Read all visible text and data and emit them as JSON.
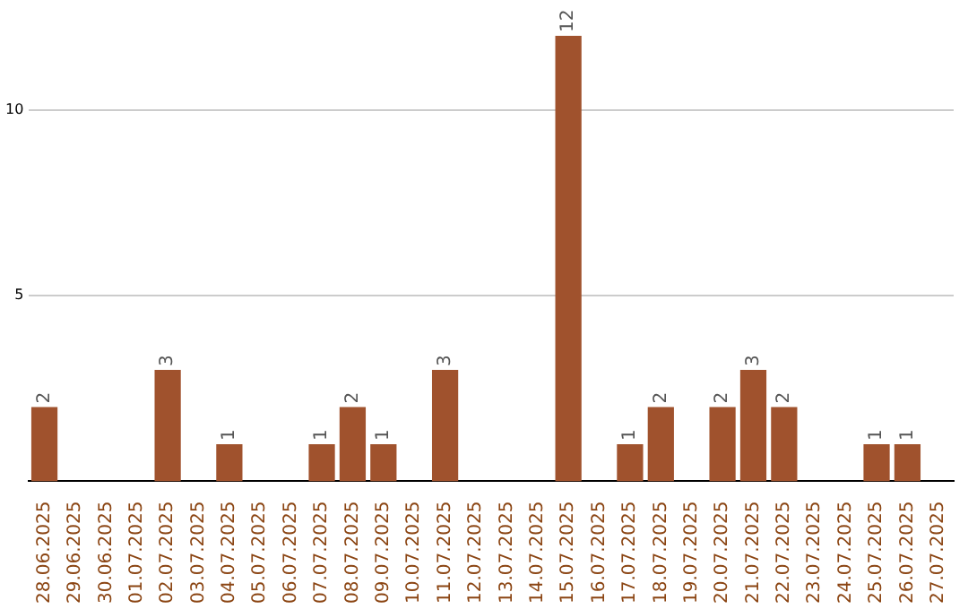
{
  "chart_data": {
    "type": "bar",
    "categories": [
      "28.06.2025",
      "29.06.2025",
      "30.06.2025",
      "01.07.2025",
      "02.07.2025",
      "03.07.2025",
      "04.07.2025",
      "05.07.2025",
      "06.07.2025",
      "07.07.2025",
      "08.07.2025",
      "09.07.2025",
      "10.07.2025",
      "11.07.2025",
      "12.07.2025",
      "13.07.2025",
      "14.07.2025",
      "15.07.2025",
      "16.07.2025",
      "17.07.2025",
      "18.07.2025",
      "19.07.2025",
      "20.07.2025",
      "21.07.2025",
      "22.07.2025",
      "23.07.2025",
      "24.07.2025",
      "25.07.2025",
      "26.07.2025",
      "27.07.2025"
    ],
    "values": [
      2,
      0,
      0,
      0,
      3,
      0,
      1,
      0,
      0,
      1,
      2,
      1,
      0,
      3,
      0,
      0,
      0,
      12,
      0,
      1,
      2,
      0,
      2,
      3,
      2,
      0,
      0,
      1,
      1,
      0
    ],
    "value_labels": [
      "2",
      null,
      null,
      null,
      "3",
      null,
      "1",
      null,
      null,
      "1",
      "2",
      "1",
      null,
      "3",
      null,
      null,
      null,
      "12",
      null,
      "1",
      "2",
      null,
      "2",
      "3",
      "2",
      null,
      null,
      "1",
      "1",
      null
    ],
    "color": "#a0522d",
    "ylim": [
      0,
      12
    ],
    "yticks": [
      5,
      10
    ],
    "grid": "y",
    "legend": false
  }
}
